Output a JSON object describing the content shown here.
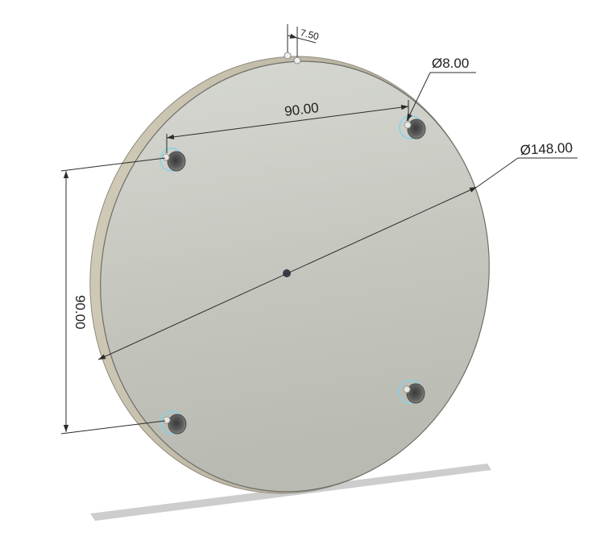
{
  "drawing": {
    "part": "circular plate with four holes",
    "dimensions": {
      "thickness": "7.50",
      "hole_diameter": "Ø8.00",
      "hole_spacing_horizontal": "90.00",
      "plate_diameter": "Ø148.00",
      "hole_spacing_vertical": "90.00"
    },
    "colors": {
      "plate_face": "#c9cbc3",
      "plate_rim": "#b2ab98",
      "hole_highlight": "#7fd3f0",
      "shadow": "#c8c8c8"
    }
  }
}
